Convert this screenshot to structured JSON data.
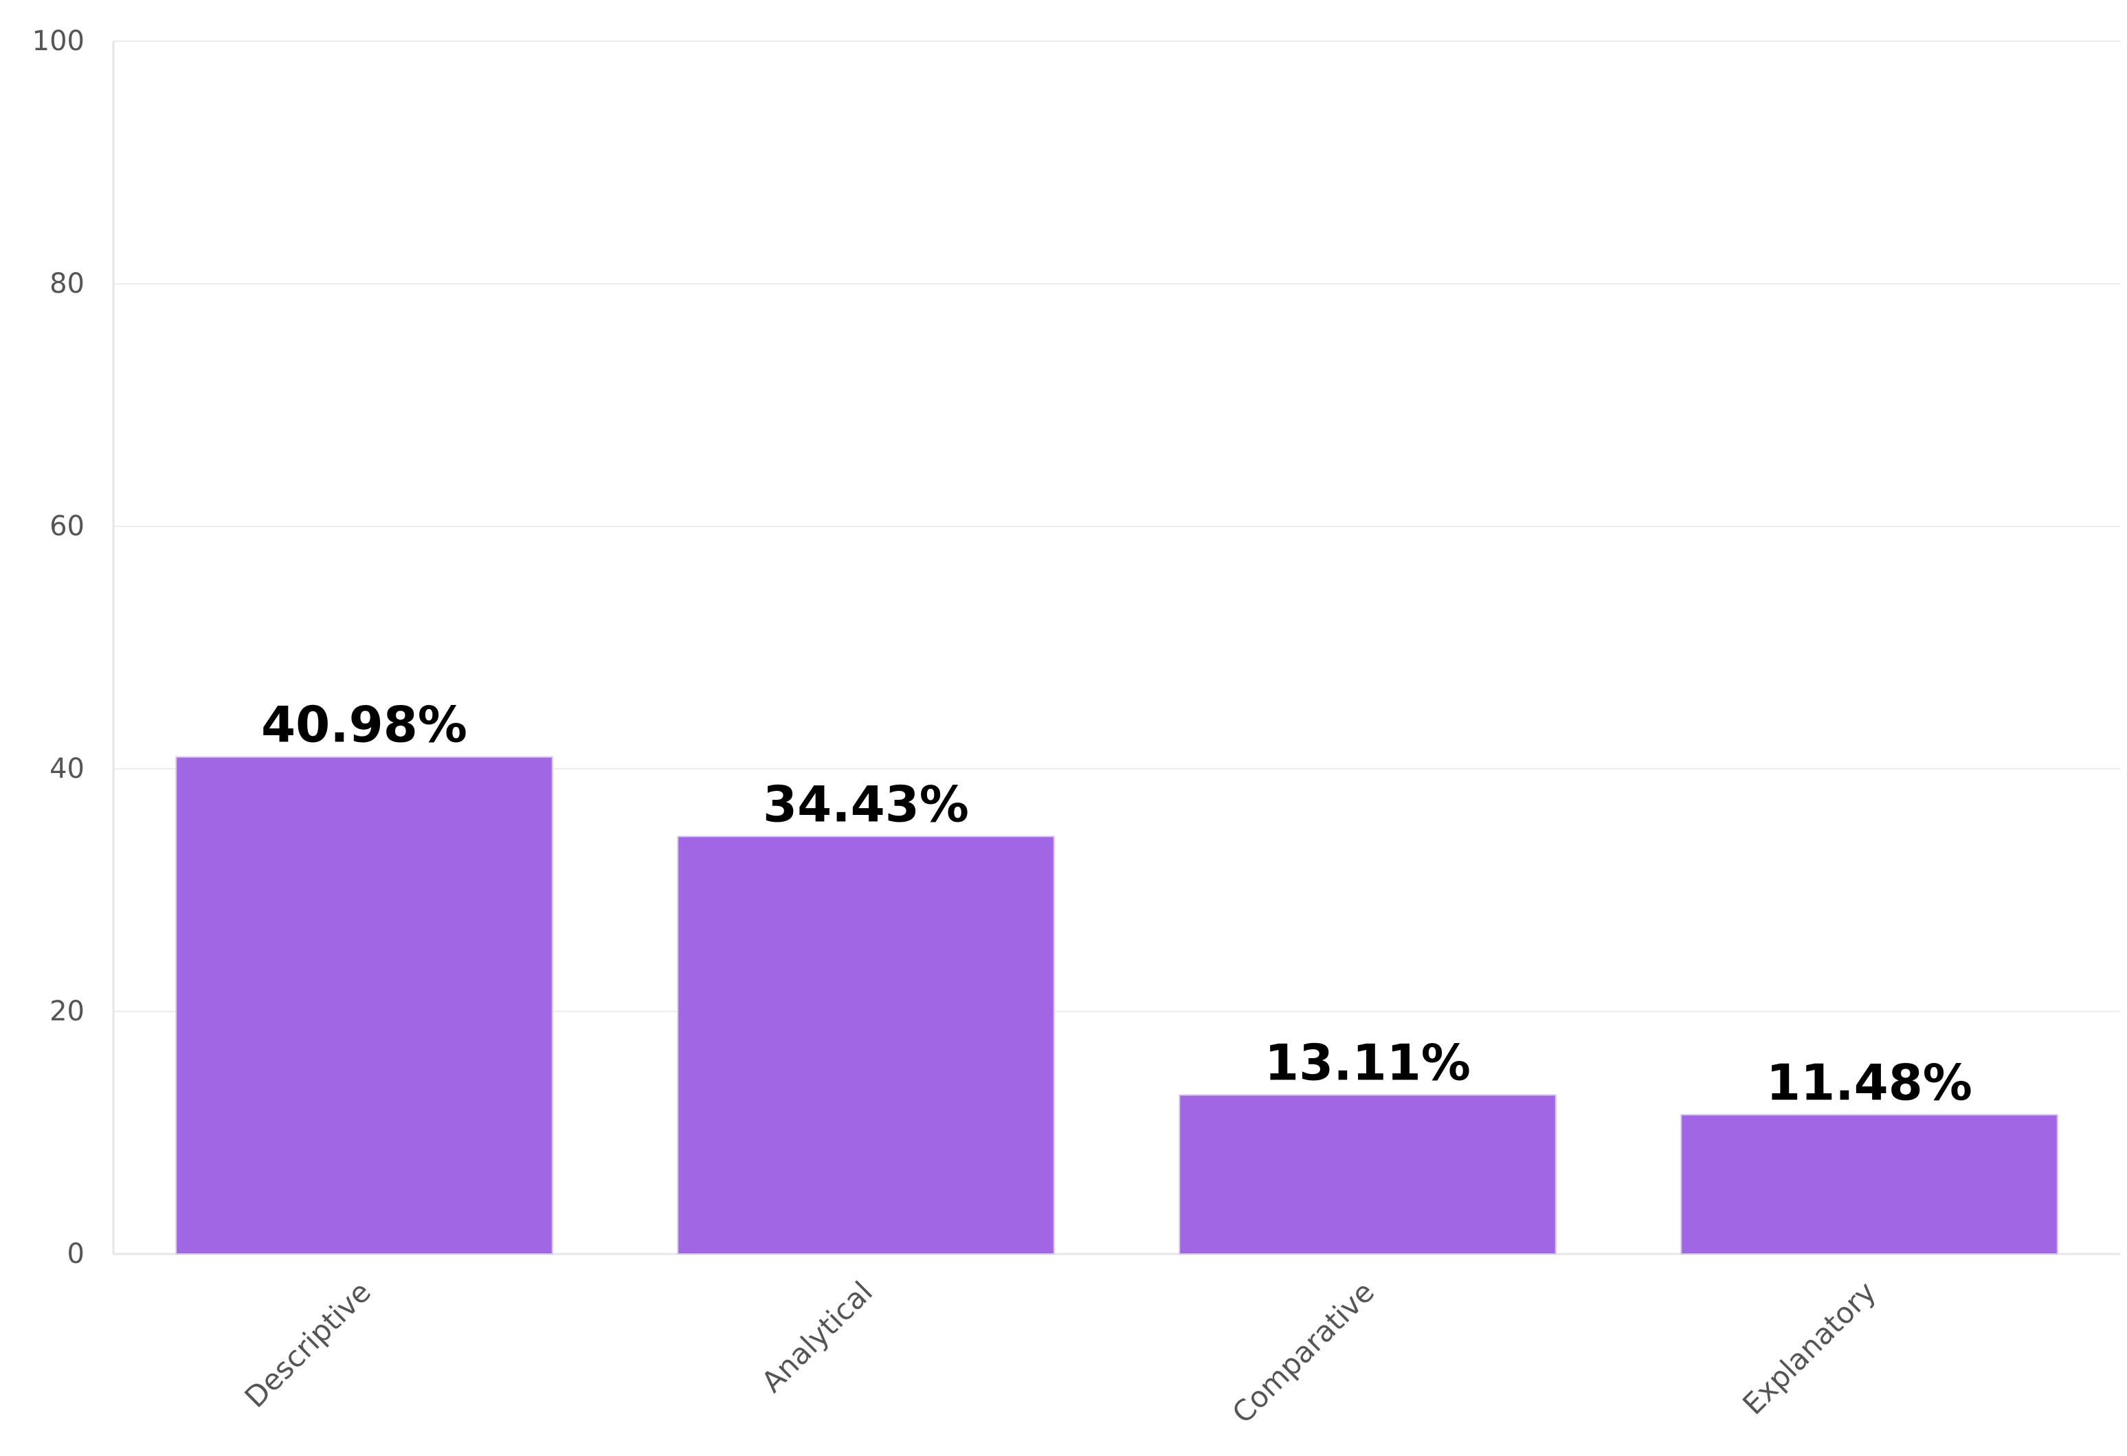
{
  "chart_data": {
    "type": "bar",
    "categories": [
      "Descriptive",
      "Analytical",
      "Comparative",
      "Explanatory"
    ],
    "values": [
      40.98,
      34.43,
      13.11,
      11.48
    ],
    "data_labels": [
      "40.98%",
      "34.43%",
      "13.11%",
      "11.48%"
    ],
    "title": "",
    "xlabel": "",
    "ylabel": "",
    "ylim": [
      0,
      100
    ],
    "yticks": [
      0,
      20,
      40,
      60,
      80,
      100
    ],
    "grid": true,
    "legend": "none",
    "colors": {
      "bar": "#a066e3",
      "grid": "#ececec"
    }
  }
}
